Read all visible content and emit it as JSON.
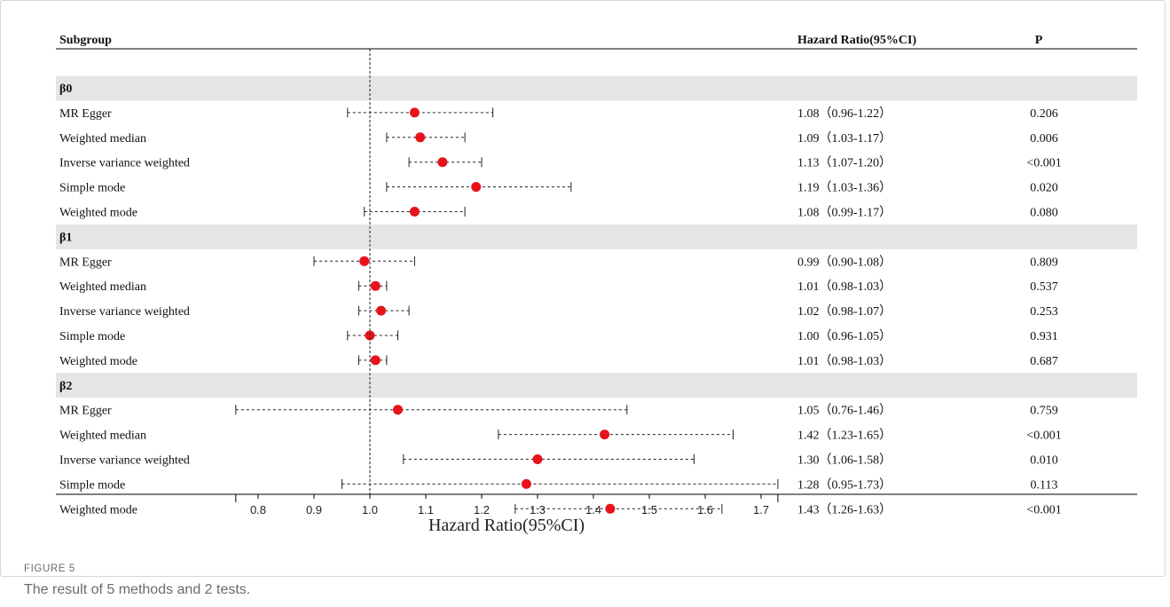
{
  "figure": {
    "label": "FIGURE 5",
    "caption": "The result of 5 methods and 2 tests."
  },
  "table_headers": {
    "subgroup": "Subgroup",
    "hazard_ratio": "Hazard Ratio(95%CI)",
    "p": "P"
  },
  "chart_data": {
    "type": "forest",
    "xlabel": "Hazard Ratio(95%CI)",
    "xlim": [
      0.76,
      1.73
    ],
    "x_ticks": [
      0.8,
      0.9,
      1.0,
      1.1,
      1.2,
      1.3,
      1.4,
      1.5,
      1.6,
      1.7
    ],
    "x_tick_labels": [
      "0.8",
      "0.9",
      "1.0",
      "1.1",
      "1.2",
      "1.3",
      "1.4",
      "1.5",
      "1.6",
      "1.7"
    ],
    "reference_line": 1.0,
    "point_color": "#e8121d",
    "band_color": "#e5e5e5",
    "groups": [
      {
        "name": "β0",
        "rows": [
          {
            "label": "MR Egger",
            "hr": 1.08,
            "lo": 0.96,
            "hi": 1.22,
            "ci_text": "1.08（0.96-1.22）",
            "p": "0.206"
          },
          {
            "label": "Weighted median",
            "hr": 1.09,
            "lo": 1.03,
            "hi": 1.17,
            "ci_text": "1.09（1.03-1.17）",
            "p": "0.006"
          },
          {
            "label": "Inverse variance weighted",
            "hr": 1.13,
            "lo": 1.07,
            "hi": 1.2,
            "ci_text": "1.13（1.07-1.20）",
            "p": "<0.001"
          },
          {
            "label": "Simple mode",
            "hr": 1.19,
            "lo": 1.03,
            "hi": 1.36,
            "ci_text": "1.19（1.03-1.36）",
            "p": "0.020"
          },
          {
            "label": "Weighted mode",
            "hr": 1.08,
            "lo": 0.99,
            "hi": 1.17,
            "ci_text": "1.08（0.99-1.17）",
            "p": "0.080"
          }
        ]
      },
      {
        "name": "β1",
        "rows": [
          {
            "label": "MR Egger",
            "hr": 0.99,
            "lo": 0.9,
            "hi": 1.08,
            "ci_text": "0.99（0.90-1.08）",
            "p": "0.809"
          },
          {
            "label": "Weighted median",
            "hr": 1.01,
            "lo": 0.98,
            "hi": 1.03,
            "ci_text": "1.01（0.98-1.03）",
            "p": "0.537"
          },
          {
            "label": "Inverse variance weighted",
            "hr": 1.02,
            "lo": 0.98,
            "hi": 1.07,
            "ci_text": "1.02（0.98-1.07）",
            "p": "0.253"
          },
          {
            "label": "Simple mode",
            "hr": 1.0,
            "lo": 0.96,
            "hi": 1.05,
            "ci_text": "1.00（0.96-1.05）",
            "p": "0.931"
          },
          {
            "label": "Weighted mode",
            "hr": 1.01,
            "lo": 0.98,
            "hi": 1.03,
            "ci_text": "1.01（0.98-1.03）",
            "p": "0.687"
          }
        ]
      },
      {
        "name": "β2",
        "rows": [
          {
            "label": "MR Egger",
            "hr": 1.05,
            "lo": 0.76,
            "hi": 1.46,
            "ci_text": "1.05（0.76-1.46）",
            "p": "0.759"
          },
          {
            "label": "Weighted median",
            "hr": 1.42,
            "lo": 1.23,
            "hi": 1.65,
            "ci_text": "1.42（1.23-1.65）",
            "p": "<0.001"
          },
          {
            "label": "Inverse variance weighted",
            "hr": 1.3,
            "lo": 1.06,
            "hi": 1.58,
            "ci_text": "1.30（1.06-1.58）",
            "p": "0.010"
          },
          {
            "label": "Simple mode",
            "hr": 1.28,
            "lo": 0.95,
            "hi": 1.73,
            "ci_text": "1.28（0.95-1.73）",
            "p": "0.113"
          },
          {
            "label": "Weighted mode",
            "hr": 1.43,
            "lo": 1.26,
            "hi": 1.63,
            "ci_text": "1.43（1.26-1.63）",
            "p": "<0.001"
          }
        ]
      }
    ]
  }
}
